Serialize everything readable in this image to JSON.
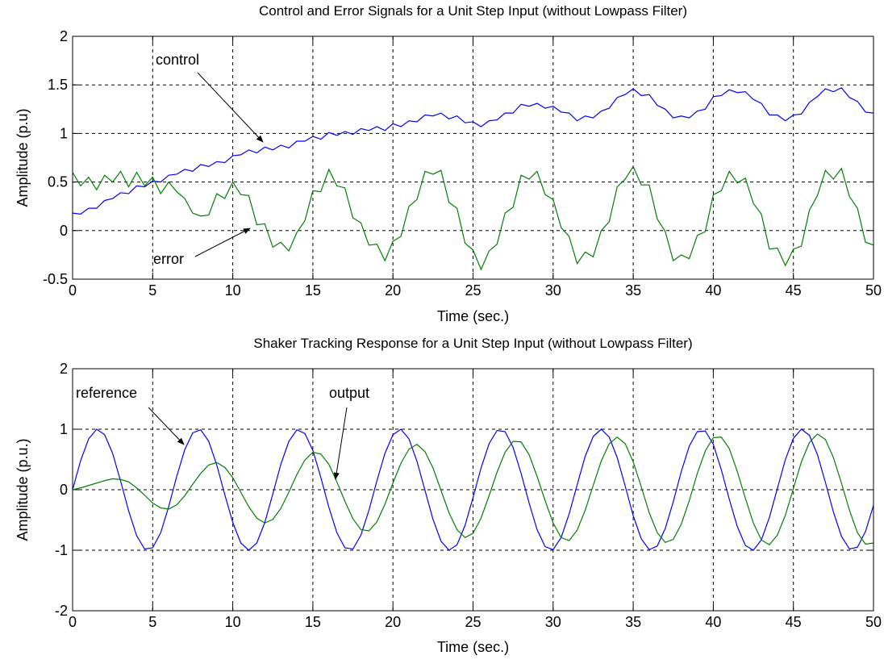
{
  "chart_data": [
    {
      "type": "line",
      "title": "Control and Error Signals for a Unit Step Input (without Lowpass Filter)",
      "x_label": "Time (sec.)",
      "y_label": "Amplitude (p.u)",
      "x": [
        0,
        0.5,
        1,
        1.5,
        2,
        2.5,
        3,
        3.5,
        4,
        4.5,
        5,
        5.5,
        6,
        6.5,
        7,
        7.5,
        8,
        8.5,
        9,
        9.5,
        10,
        10.5,
        11,
        11.5,
        12,
        12.5,
        13,
        13.5,
        14,
        14.5,
        15,
        15.5,
        16,
        16.5,
        17,
        17.5,
        18,
        18.5,
        19,
        19.5,
        20,
        20.5,
        21,
        21.5,
        22,
        22.5,
        23,
        23.5,
        24,
        24.5,
        25,
        25.5,
        26,
        26.5,
        27,
        27.5,
        28,
        28.5,
        29,
        29.5,
        30,
        30.5,
        31,
        31.5,
        32,
        32.5,
        33,
        33.5,
        34,
        34.5,
        35,
        35.5,
        36,
        36.5,
        37,
        37.5,
        38,
        38.5,
        39,
        39.5,
        40,
        40.5,
        41,
        41.5,
        42,
        42.5,
        43,
        43.5,
        44,
        44.5,
        45,
        45.5,
        46,
        46.5,
        47,
        47.5,
        48,
        48.5,
        49,
        49.5,
        50
      ],
      "series": [
        {
          "name": "control",
          "color": "#0000ff",
          "values": [
            0.18,
            0.17,
            0.23,
            0.23,
            0.31,
            0.33,
            0.39,
            0.38,
            0.46,
            0.45,
            0.51,
            0.5,
            0.57,
            0.58,
            0.63,
            0.61,
            0.68,
            0.66,
            0.71,
            0.7,
            0.77,
            0.78,
            0.83,
            0.8,
            0.86,
            0.83,
            0.88,
            0.85,
            0.92,
            0.92,
            0.97,
            0.94,
            1.01,
            0.98,
            1.02,
            0.99,
            1.05,
            1.03,
            1.07,
            1.03,
            1.1,
            1.07,
            1.13,
            1.12,
            1.19,
            1.18,
            1.21,
            1.15,
            1.18,
            1.11,
            1.12,
            1.07,
            1.13,
            1.14,
            1.21,
            1.21,
            1.3,
            1.28,
            1.31,
            1.26,
            1.28,
            1.22,
            1.21,
            1.13,
            1.18,
            1.16,
            1.23,
            1.26,
            1.37,
            1.4,
            1.46,
            1.39,
            1.4,
            1.29,
            1.25,
            1.16,
            1.18,
            1.16,
            1.23,
            1.25,
            1.38,
            1.39,
            1.45,
            1.42,
            1.43,
            1.35,
            1.31,
            1.19,
            1.19,
            1.13,
            1.19,
            1.2,
            1.32,
            1.38,
            1.46,
            1.43,
            1.47,
            1.37,
            1.33,
            1.22,
            1.21
          ]
        },
        {
          "name": "error",
          "color": "#008000",
          "values": [
            0.6,
            0.46,
            0.55,
            0.42,
            0.57,
            0.5,
            0.61,
            0.45,
            0.6,
            0.46,
            0.55,
            0.38,
            0.5,
            0.4,
            0.33,
            0.18,
            0.15,
            0.16,
            0.38,
            0.33,
            0.5,
            0.37,
            0.36,
            0.06,
            0.07,
            -0.17,
            -0.12,
            -0.21,
            -0.02,
            0.1,
            0.41,
            0.4,
            0.63,
            0.46,
            0.44,
            0.13,
            0.08,
            -0.15,
            -0.14,
            -0.31,
            -0.11,
            -0.06,
            0.25,
            0.32,
            0.61,
            0.58,
            0.62,
            0.29,
            0.23,
            -0.13,
            -0.2,
            -0.4,
            -0.21,
            -0.14,
            0.18,
            0.24,
            0.57,
            0.53,
            0.61,
            0.37,
            0.32,
            0.03,
            -0.06,
            -0.34,
            -0.22,
            -0.27,
            0,
            0.09,
            0.45,
            0.53,
            0.66,
            0.47,
            0.47,
            0.12,
            -0.01,
            -0.31,
            -0.25,
            -0.29,
            -0.05,
            -0.01,
            0.37,
            0.41,
            0.61,
            0.49,
            0.54,
            0.28,
            0.17,
            -0.19,
            -0.18,
            -0.36,
            -0.19,
            -0.16,
            0.21,
            0.36,
            0.62,
            0.53,
            0.64,
            0.35,
            0.23,
            -0.12,
            -0.15
          ]
        }
      ],
      "xlim": [
        0,
        50
      ],
      "ylim": [
        -0.5,
        2
      ],
      "xticks": [
        0,
        5,
        10,
        15,
        20,
        25,
        30,
        35,
        40,
        45,
        50
      ],
      "yticks": [
        -0.5,
        0,
        0.5,
        1,
        1.5,
        2
      ],
      "grid": true
    },
    {
      "type": "line",
      "title": "Shaker Tracking Response for a Unit Step Input (without Lowpass Filter)",
      "x_label": "Time (sec.)",
      "y_label": "Amplitude (p.u.)",
      "x": [
        0,
        0.5,
        1,
        1.5,
        2,
        2.5,
        3,
        3.5,
        4,
        4.5,
        5,
        5.5,
        6,
        6.5,
        7,
        7.5,
        8,
        8.5,
        9,
        9.5,
        10,
        10.5,
        11,
        11.5,
        12,
        12.5,
        13,
        13.5,
        14,
        14.5,
        15,
        15.5,
        16,
        16.5,
        17,
        17.5,
        18,
        18.5,
        19,
        19.5,
        20,
        20.5,
        21,
        21.5,
        22,
        22.5,
        23,
        23.5,
        24,
        24.5,
        25,
        25.5,
        26,
        26.5,
        27,
        27.5,
        28,
        28.5,
        29,
        29.5,
        30,
        30.5,
        31,
        31.5,
        32,
        32.5,
        33,
        33.5,
        34,
        34.5,
        35,
        35.5,
        36,
        36.5,
        37,
        37.5,
        38,
        38.5,
        39,
        39.5,
        40,
        40.5,
        41,
        41.5,
        42,
        42.5,
        43,
        43.5,
        44,
        44.5,
        45,
        45.5,
        46,
        46.5,
        47,
        47.5,
        48,
        48.5,
        49,
        49.5,
        50
      ],
      "series": [
        {
          "name": "reference",
          "color": "#0000ff",
          "values": [
            0,
            0.48,
            0.84,
            1,
            0.91,
            0.6,
            0.14,
            -0.35,
            -0.76,
            -0.98,
            -0.96,
            -0.71,
            -0.28,
            0.22,
            0.66,
            0.94,
            0.99,
            0.8,
            0.41,
            -0.08,
            -0.54,
            -0.88,
            -1,
            -0.88,
            -0.54,
            -0.07,
            0.42,
            0.8,
            0.99,
            0.93,
            0.65,
            0.2,
            -0.29,
            -0.71,
            -0.96,
            -0.98,
            -0.75,
            -0.34,
            0.15,
            0.6,
            0.91,
            1,
            0.84,
            0.47,
            -0.01,
            -0.49,
            -0.85,
            -1,
            -0.91,
            -0.59,
            -0.13,
            0.36,
            0.76,
            0.98,
            0.96,
            0.7,
            0.27,
            -0.22,
            -0.66,
            -0.94,
            -0.99,
            -0.79,
            -0.4,
            0.08,
            0.55,
            0.88,
            1,
            0.87,
            0.53,
            0.06,
            -0.43,
            -0.81,
            -0.99,
            -0.93,
            -0.64,
            -0.2,
            0.3,
            0.72,
            0.96,
            0.97,
            0.75,
            0.33,
            -0.16,
            -0.61,
            -0.92,
            -1,
            -0.83,
            -0.46,
            0.02,
            0.5,
            0.85,
            1,
            0.9,
            0.58,
            0.12,
            -0.37,
            -0.77,
            -0.98,
            -0.95,
            -0.69,
            -0.26
          ]
        },
        {
          "name": "output",
          "color": "#008000",
          "values": [
            0,
            0.03,
            0.07,
            0.11,
            0.15,
            0.18,
            0.17,
            0.13,
            0.03,
            -0.09,
            -0.22,
            -0.3,
            -0.32,
            -0.25,
            -0.1,
            0.09,
            0.27,
            0.41,
            0.45,
            0.37,
            0.2,
            -0.04,
            -0.28,
            -0.47,
            -0.55,
            -0.49,
            -0.31,
            -0.04,
            0.25,
            0.49,
            0.62,
            0.59,
            0.42,
            0.13,
            -0.19,
            -0.48,
            -0.66,
            -0.68,
            -0.53,
            -0.24,
            0.11,
            0.44,
            0.67,
            0.75,
            0.63,
            0.36,
            -0.01,
            -0.38,
            -0.66,
            -0.79,
            -0.72,
            -0.47,
            -0.1,
            0.29,
            0.62,
            0.8,
            0.79,
            0.58,
            0.22,
            -0.18,
            -0.55,
            -0.79,
            -0.84,
            -0.67,
            -0.34,
            0.07,
            0.47,
            0.76,
            0.87,
            0.76,
            0.46,
            0.05,
            -0.38,
            -0.71,
            -0.87,
            -0.82,
            -0.57,
            -0.18,
            0.27,
            0.64,
            0.86,
            0.87,
            0.68,
            0.3,
            -0.14,
            -0.55,
            -0.83,
            -0.91,
            -0.75,
            -0.42,
            0.02,
            0.46,
            0.78,
            0.92,
            0.83,
            0.53,
            0.11,
            -0.34,
            -0.71,
            -0.9,
            -0.88
          ]
        }
      ],
      "xlim": [
        0,
        50
      ],
      "ylim": [
        -2,
        2
      ],
      "xticks": [
        0,
        5,
        10,
        15,
        20,
        25,
        30,
        35,
        40,
        45,
        50
      ],
      "yticks": [
        -2,
        -1,
        0,
        1,
        2
      ],
      "grid": true
    }
  ]
}
